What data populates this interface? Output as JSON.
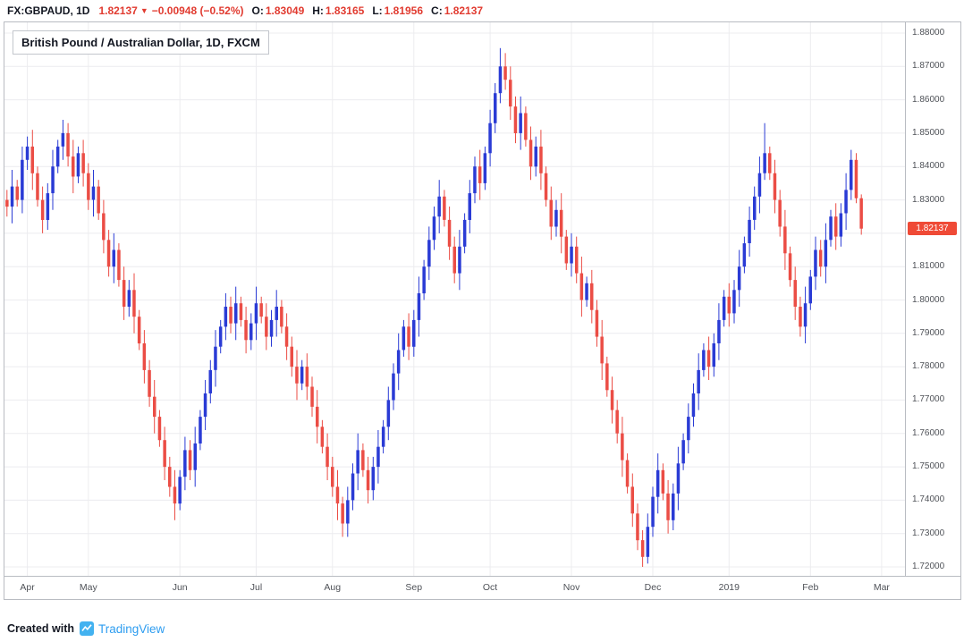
{
  "header": {
    "symbol": "FX:GBPAUD, 1D",
    "last_price": "1.82137",
    "direction_icon": "▼",
    "change": "−0.00948 (−0.52%)",
    "ohlc": {
      "o_label": "O:",
      "o": "1.83049",
      "h_label": "H:",
      "h": "1.83165",
      "l_label": "L:",
      "l": "1.81956",
      "c_label": "C:",
      "c": "1.82137"
    }
  },
  "chart": {
    "title": "British Pound / Australian Dollar, 1D, FXCM"
  },
  "footer": {
    "created_with": "Created with",
    "brand": "TradingView"
  },
  "chart_data": {
    "type": "candlestick",
    "symbol": "FX:GBPAUD",
    "timeframe": "1D",
    "exchange": "FXCM",
    "title": "British Pound / Australian Dollar, 1D, FXCM",
    "grid": true,
    "ylim": [
      1.72,
      1.88
    ],
    "y_ticks": [
      "1.88000",
      "1.87000",
      "1.86000",
      "1.85000",
      "1.84000",
      "1.83000",
      "1.82000",
      "1.81000",
      "1.80000",
      "1.79000",
      "1.78000",
      "1.77000",
      "1.76000",
      "1.75000",
      "1.74000",
      "1.73000",
      "1.72000"
    ],
    "x_ticks": [
      {
        "label": "Apr",
        "index": 4
      },
      {
        "label": "May",
        "index": 16
      },
      {
        "label": "Jun",
        "index": 34
      },
      {
        "label": "Jul",
        "index": 49
      },
      {
        "label": "Aug",
        "index": 64
      },
      {
        "label": "Sep",
        "index": 80
      },
      {
        "label": "Oct",
        "index": 95
      },
      {
        "label": "Nov",
        "index": 111
      },
      {
        "label": "Dec",
        "index": 127
      },
      {
        "label": "2019",
        "index": 142
      },
      {
        "label": "Feb",
        "index": 158
      },
      {
        "label": "Mar",
        "index": 172
      }
    ],
    "last_price": 1.82137,
    "last_price_label": "1.82137",
    "last_ohlc": {
      "open": 1.83049,
      "high": 1.83165,
      "low": 1.81956,
      "close": 1.82137
    },
    "colors": {
      "up": "#2a3bd5",
      "down": "#eb4d45",
      "grid": "#ececef",
      "axis_text": "#4f5258",
      "tag_bg": "#ef4a36",
      "tag_text": "#ffffff"
    },
    "candles": [
      [
        1.83,
        1.833,
        1.825,
        1.828
      ],
      [
        1.828,
        1.839,
        1.823,
        1.834
      ],
      [
        1.834,
        1.836,
        1.828,
        1.83
      ],
      [
        1.83,
        1.846,
        1.826,
        1.842
      ],
      [
        1.842,
        1.849,
        1.839,
        1.846
      ],
      [
        1.846,
        1.851,
        1.833,
        1.838
      ],
      [
        1.838,
        1.84,
        1.828,
        1.83
      ],
      [
        1.83,
        1.834,
        1.82,
        1.824
      ],
      [
        1.824,
        1.835,
        1.821,
        1.832
      ],
      [
        1.832,
        1.845,
        1.827,
        1.84
      ],
      [
        1.84,
        1.848,
        1.838,
        1.846
      ],
      [
        1.846,
        1.854,
        1.842,
        1.85
      ],
      [
        1.85,
        1.853,
        1.84,
        1.843
      ],
      [
        1.843,
        1.848,
        1.832,
        1.837
      ],
      [
        1.837,
        1.846,
        1.835,
        1.844
      ],
      [
        1.844,
        1.848,
        1.834,
        1.838
      ],
      [
        1.838,
        1.841,
        1.827,
        1.83
      ],
      [
        1.83,
        1.839,
        1.825,
        1.834
      ],
      [
        1.834,
        1.836,
        1.824,
        1.826
      ],
      [
        1.826,
        1.83,
        1.814,
        1.818
      ],
      [
        1.818,
        1.821,
        1.807,
        1.81
      ],
      [
        1.81,
        1.82,
        1.805,
        1.815
      ],
      [
        1.815,
        1.817,
        1.804,
        1.806
      ],
      [
        1.806,
        1.81,
        1.794,
        1.798
      ],
      [
        1.798,
        1.806,
        1.795,
        1.803
      ],
      [
        1.803,
        1.808,
        1.79,
        1.795
      ],
      [
        1.795,
        1.797,
        1.785,
        1.787
      ],
      [
        1.787,
        1.791,
        1.775,
        1.779
      ],
      [
        1.779,
        1.782,
        1.768,
        1.771
      ],
      [
        1.771,
        1.776,
        1.76,
        1.765
      ],
      [
        1.765,
        1.767,
        1.756,
        1.758
      ],
      [
        1.758,
        1.762,
        1.746,
        1.75
      ],
      [
        1.75,
        1.753,
        1.741,
        1.744
      ],
      [
        1.744,
        1.749,
        1.734,
        1.739
      ],
      [
        1.739,
        1.749,
        1.737,
        1.747
      ],
      [
        1.747,
        1.759,
        1.743,
        1.755
      ],
      [
        1.755,
        1.758,
        1.746,
        1.749
      ],
      [
        1.749,
        1.762,
        1.744,
        1.757
      ],
      [
        1.757,
        1.767,
        1.755,
        1.765
      ],
      [
        1.765,
        1.776,
        1.761,
        1.772
      ],
      [
        1.772,
        1.782,
        1.769,
        1.779
      ],
      [
        1.779,
        1.791,
        1.774,
        1.786
      ],
      [
        1.786,
        1.794,
        1.784,
        1.792
      ],
      [
        1.792,
        1.802,
        1.788,
        1.798
      ],
      [
        1.798,
        1.801,
        1.79,
        1.793
      ],
      [
        1.793,
        1.804,
        1.788,
        1.799
      ],
      [
        1.799,
        1.801,
        1.792,
        1.794
      ],
      [
        1.794,
        1.798,
        1.784,
        1.788
      ],
      [
        1.788,
        1.796,
        1.785,
        1.793
      ],
      [
        1.793,
        1.804,
        1.788,
        1.799
      ],
      [
        1.799,
        1.801,
        1.793,
        1.795
      ],
      [
        1.795,
        1.799,
        1.785,
        1.789
      ],
      [
        1.789,
        1.797,
        1.786,
        1.794
      ],
      [
        1.794,
        1.803,
        1.789,
        1.798
      ],
      [
        1.798,
        1.8,
        1.79,
        1.792
      ],
      [
        1.792,
        1.796,
        1.782,
        1.786
      ],
      [
        1.786,
        1.789,
        1.777,
        1.78
      ],
      [
        1.78,
        1.785,
        1.77,
        1.775
      ],
      [
        1.775,
        1.782,
        1.773,
        1.78
      ],
      [
        1.78,
        1.784,
        1.77,
        1.774
      ],
      [
        1.774,
        1.777,
        1.765,
        1.768
      ],
      [
        1.768,
        1.773,
        1.757,
        1.762
      ],
      [
        1.762,
        1.764,
        1.754,
        1.756
      ],
      [
        1.756,
        1.76,
        1.746,
        1.75
      ],
      [
        1.75,
        1.753,
        1.741,
        1.744
      ],
      [
        1.744,
        1.749,
        1.734,
        1.739
      ],
      [
        1.739,
        1.741,
        1.729,
        1.733
      ],
      [
        1.733,
        1.744,
        1.729,
        1.74
      ],
      [
        1.74,
        1.751,
        1.737,
        1.748
      ],
      [
        1.748,
        1.76,
        1.743,
        1.755
      ],
      [
        1.755,
        1.757,
        1.747,
        1.749
      ],
      [
        1.749,
        1.753,
        1.739,
        1.743
      ],
      [
        1.743,
        1.753,
        1.74,
        1.75
      ],
      [
        1.75,
        1.761,
        1.745,
        1.756
      ],
      [
        1.756,
        1.764,
        1.754,
        1.762
      ],
      [
        1.762,
        1.774,
        1.758,
        1.77
      ],
      [
        1.77,
        1.781,
        1.767,
        1.778
      ],
      [
        1.778,
        1.79,
        1.773,
        1.785
      ],
      [
        1.785,
        1.794,
        1.783,
        1.792
      ],
      [
        1.792,
        1.796,
        1.782,
        1.786
      ],
      [
        1.786,
        1.797,
        1.783,
        1.794
      ],
      [
        1.794,
        1.807,
        1.789,
        1.802
      ],
      [
        1.802,
        1.812,
        1.8,
        1.81
      ],
      [
        1.81,
        1.822,
        1.806,
        1.818
      ],
      [
        1.818,
        1.828,
        1.815,
        1.825
      ],
      [
        1.825,
        1.836,
        1.82,
        1.831
      ],
      [
        1.831,
        1.833,
        1.822,
        1.824
      ],
      [
        1.824,
        1.828,
        1.812,
        1.816
      ],
      [
        1.816,
        1.819,
        1.805,
        1.808
      ],
      [
        1.808,
        1.821,
        1.803,
        1.816
      ],
      [
        1.816,
        1.826,
        1.814,
        1.824
      ],
      [
        1.824,
        1.836,
        1.82,
        1.832
      ],
      [
        1.832,
        1.843,
        1.829,
        1.84
      ],
      [
        1.84,
        1.845,
        1.83,
        1.835
      ],
      [
        1.835,
        1.846,
        1.833,
        1.844
      ],
      [
        1.844,
        1.857,
        1.84,
        1.853
      ],
      [
        1.853,
        1.865,
        1.85,
        1.862
      ],
      [
        1.862,
        1.8755,
        1.859,
        1.87
      ],
      [
        1.87,
        1.874,
        1.863,
        1.866
      ],
      [
        1.866,
        1.87,
        1.854,
        1.858
      ],
      [
        1.858,
        1.861,
        1.847,
        1.85
      ],
      [
        1.85,
        1.861,
        1.845,
        1.856
      ],
      [
        1.856,
        1.858,
        1.846,
        1.848
      ],
      [
        1.848,
        1.852,
        1.836,
        1.84
      ],
      [
        1.84,
        1.849,
        1.837,
        1.846
      ],
      [
        1.846,
        1.851,
        1.833,
        1.838
      ],
      [
        1.838,
        1.84,
        1.828,
        1.83
      ],
      [
        1.83,
        1.834,
        1.818,
        1.822
      ],
      [
        1.822,
        1.83,
        1.819,
        1.827
      ],
      [
        1.827,
        1.832,
        1.814,
        1.819
      ],
      [
        1.819,
        1.821,
        1.809,
        1.811
      ],
      [
        1.811,
        1.82,
        1.807,
        1.816
      ],
      [
        1.816,
        1.819,
        1.805,
        1.808
      ],
      [
        1.808,
        1.813,
        1.795,
        1.8
      ],
      [
        1.8,
        1.807,
        1.798,
        1.805
      ],
      [
        1.805,
        1.809,
        1.793,
        1.797
      ],
      [
        1.797,
        1.8,
        1.786,
        1.789
      ],
      [
        1.789,
        1.794,
        1.776,
        1.781
      ],
      [
        1.781,
        1.783,
        1.771,
        1.773
      ],
      [
        1.773,
        1.777,
        1.763,
        1.767
      ],
      [
        1.767,
        1.77,
        1.757,
        1.76
      ],
      [
        1.76,
        1.765,
        1.747,
        1.752
      ],
      [
        1.752,
        1.754,
        1.742,
        1.744
      ],
      [
        1.744,
        1.748,
        1.732,
        1.736
      ],
      [
        1.736,
        1.739,
        1.725,
        1.728
      ],
      [
        1.728,
        1.731,
        1.72,
        1.723
      ],
      [
        1.723,
        1.736,
        1.721,
        1.732
      ],
      [
        1.732,
        1.744,
        1.729,
        1.741
      ],
      [
        1.741,
        1.754,
        1.736,
        1.749
      ],
      [
        1.749,
        1.751,
        1.74,
        1.742
      ],
      [
        1.742,
        1.746,
        1.73,
        1.734
      ],
      [
        1.734,
        1.745,
        1.731,
        1.742
      ],
      [
        1.742,
        1.756,
        1.737,
        1.751
      ],
      [
        1.751,
        1.76,
        1.749,
        1.758
      ],
      [
        1.758,
        1.769,
        1.754,
        1.765
      ],
      [
        1.765,
        1.775,
        1.762,
        1.772
      ],
      [
        1.772,
        1.784,
        1.767,
        1.779
      ],
      [
        1.779,
        1.787,
        1.777,
        1.785
      ],
      [
        1.785,
        1.789,
        1.776,
        1.78
      ],
      [
        1.78,
        1.79,
        1.777,
        1.787
      ],
      [
        1.787,
        1.799,
        1.782,
        1.794
      ],
      [
        1.794,
        1.803,
        1.792,
        1.801
      ],
      [
        1.801,
        1.805,
        1.792,
        1.796
      ],
      [
        1.796,
        1.806,
        1.793,
        1.803
      ],
      [
        1.803,
        1.815,
        1.798,
        1.81
      ],
      [
        1.81,
        1.819,
        1.808,
        1.817
      ],
      [
        1.817,
        1.828,
        1.813,
        1.824
      ],
      [
        1.824,
        1.834,
        1.821,
        1.831
      ],
      [
        1.831,
        1.843,
        1.826,
        1.838
      ],
      [
        1.838,
        1.853,
        1.836,
        1.844
      ],
      [
        1.844,
        1.846,
        1.836,
        1.838
      ],
      [
        1.838,
        1.842,
        1.826,
        1.83
      ],
      [
        1.83,
        1.833,
        1.819,
        1.822
      ],
      [
        1.822,
        1.827,
        1.809,
        1.814
      ],
      [
        1.814,
        1.816,
        1.804,
        1.806
      ],
      [
        1.806,
        1.81,
        1.794,
        1.798
      ],
      [
        1.798,
        1.801,
        1.789,
        1.792
      ],
      [
        1.792,
        1.804,
        1.787,
        1.799
      ],
      [
        1.799,
        1.809,
        1.797,
        1.807
      ],
      [
        1.807,
        1.819,
        1.803,
        1.815
      ],
      [
        1.815,
        1.818,
        1.807,
        1.81
      ],
      [
        1.81,
        1.823,
        1.805,
        1.818
      ],
      [
        1.818,
        1.827,
        1.816,
        1.825
      ],
      [
        1.825,
        1.829,
        1.815,
        1.819
      ],
      [
        1.819,
        1.829,
        1.816,
        1.826
      ],
      [
        1.826,
        1.838,
        1.821,
        1.833
      ],
      [
        1.833,
        1.845,
        1.83,
        1.842
      ],
      [
        1.842,
        1.844,
        1.829,
        1.8305
      ],
      [
        1.83049,
        1.83165,
        1.81956,
        1.82137
      ]
    ]
  }
}
